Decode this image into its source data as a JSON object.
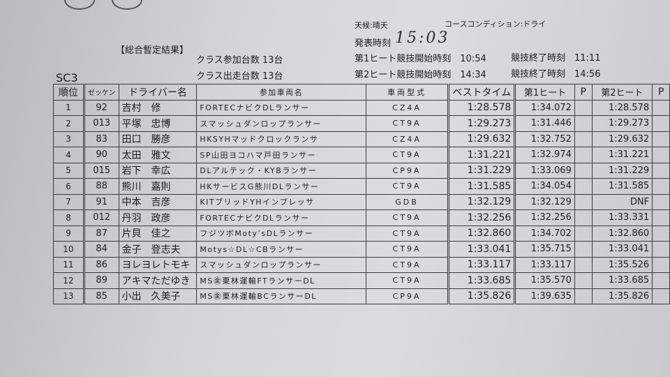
{
  "header": {
    "weather_label": "天候:晴天",
    "course_condition": "コースコンディション:ドライ",
    "title": "【総合暫定結果】",
    "announce_label": "発表時刻",
    "announce_time": "15:03",
    "entries": "クラス参加台数 13台",
    "starters": "クラス出走台数 13台",
    "heat1_start": "第1ヒート競技開始時刻　10:54",
    "heat1_end": "競技終了時刻　11:11",
    "heat2_start": "第2ヒート競技開始時刻　14:34",
    "heat2_end": "競技終了時刻　14:56",
    "class_name": "SC3"
  },
  "table": {
    "columns": [
      "順位",
      "ゼッケン",
      "ドライバー名",
      "参加車両名",
      "車両型式",
      "ベストタイム",
      "第1ヒート",
      "P",
      "第2ヒート",
      "P"
    ],
    "rows": [
      [
        "1",
        "92",
        "吉村　修",
        "FORTECナビクDLランサー",
        "CZ4A",
        "1:28.578",
        "1:34.072",
        "",
        "1:28.578",
        ""
      ],
      [
        "2",
        "013",
        "平塚　忠博",
        "スマッシュダンロップランサー",
        "CT9A",
        "1:29.273",
        "1:31.446",
        "",
        "1:29.273",
        ""
      ],
      [
        "3",
        "83",
        "田口　勝彦",
        "HKSYHマッドクロックランサ",
        "CZ4A",
        "1:29.632",
        "1:32.752",
        "",
        "1:29.632",
        ""
      ],
      [
        "4",
        "90",
        "太田　雅文",
        "SP山田ヨコハマ戸田ランサー",
        "CT9A",
        "1:31.221",
        "1:32.974",
        "",
        "1:31.221",
        ""
      ],
      [
        "5",
        "015",
        "岩下　幸広",
        "DLアルテック・KYBランサー",
        "CP9A",
        "1:31.229",
        "1:33.069",
        "",
        "1:31.229",
        ""
      ],
      [
        "6",
        "88",
        "熊川　嘉則",
        "HKサービスG熊川DLランサー",
        "CT9A",
        "1:31.585",
        "1:34.054",
        "",
        "1:31.585",
        ""
      ],
      [
        "7",
        "91",
        "中本　吉彦",
        "KITブリッドYHインプレッサ",
        "GDB",
        "1:32.129",
        "1:32.129",
        "",
        "DNF",
        ""
      ],
      [
        "8",
        "012",
        "丹羽　政彦",
        "FORTECナビクDLランサー",
        "CT9A",
        "1:32.256",
        "1:32.256",
        "",
        "1:33.331",
        ""
      ],
      [
        "9",
        "87",
        "片貝　佳之",
        "フジツボMoty’sDLランサー",
        "CT9A",
        "1:32.860",
        "1:34.702",
        "",
        "1:32.860",
        ""
      ],
      [
        "10",
        "84",
        "金子　登志夫",
        "Motys☆DL☆CBランサー",
        "CT9A",
        "1:33.041",
        "1:35.715",
        "",
        "1:33.041",
        ""
      ],
      [
        "11",
        "86",
        "ヨレヨレトモキ",
        "スマッシュダンロップランサー",
        "CT9A",
        "1:33.117",
        "1:33.117",
        "",
        "1:35.526",
        ""
      ],
      [
        "12",
        "89",
        "アキマただゆき",
        "MS㊎栗林運輸FTランサーDL",
        "CT9A",
        "1:33.685",
        "1:35.570",
        "",
        "1:33.685",
        ""
      ],
      [
        "13",
        "85",
        "小出　久美子",
        "MS㊎栗林運輸BCランサーDL",
        "CP9A",
        "1:35.826",
        "1:39.635",
        "",
        "1:35.826",
        ""
      ]
    ]
  }
}
